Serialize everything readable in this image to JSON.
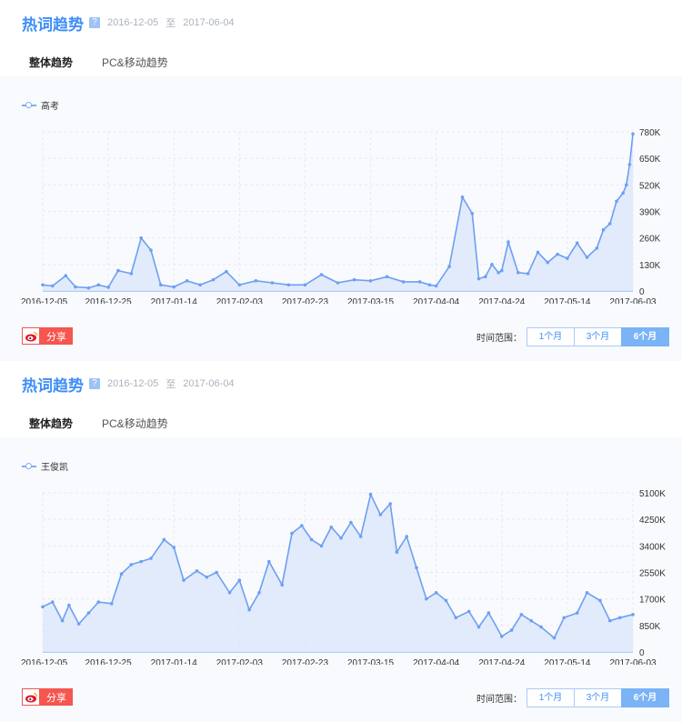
{
  "panels": [
    {
      "title": "热词趋势",
      "help_icon": "?",
      "date_start": "2016-12-05",
      "date_sep": "至",
      "date_end": "2017-06-04",
      "tabs": [
        {
          "label": "整体趋势",
          "active": true
        },
        {
          "label": "PC&移动趋势",
          "active": false
        }
      ],
      "share_label": "分享",
      "range_label": "时间范围：",
      "range_buttons": [
        {
          "label": "1个月",
          "active": false
        },
        {
          "label": "3个月",
          "active": false
        },
        {
          "label": "6个月",
          "active": true
        }
      ]
    },
    {
      "title": "热词趋势",
      "help_icon": "?",
      "date_start": "2016-12-05",
      "date_sep": "至",
      "date_end": "2017-06-04",
      "tabs": [
        {
          "label": "整体趋势",
          "active": true
        },
        {
          "label": "PC&移动趋势",
          "active": false
        }
      ],
      "share_label": "分享",
      "range_label": "时间范围：",
      "range_buttons": [
        {
          "label": "1个月",
          "active": false
        },
        {
          "label": "3个月",
          "active": false
        },
        {
          "label": "6个月",
          "active": true
        }
      ]
    }
  ],
  "chart_data": [
    {
      "type": "area",
      "x_start": "2016-12-05",
      "x_end": "2017-06-03",
      "x_ticks": [
        "2016-12-05",
        "2016-12-25",
        "2017-01-14",
        "2017-02-03",
        "2017-02-23",
        "2017-03-15",
        "2017-04-04",
        "2017-04-24",
        "2017-05-14",
        "2017-06-03"
      ],
      "y_ticks": [
        "0",
        "130K",
        "260K",
        "390K",
        "520K",
        "650K",
        "780K"
      ],
      "ylim": [
        0,
        780000
      ],
      "grid": true,
      "color": "#6e9ff2",
      "series": [
        {
          "name": "高考",
          "x": [
            "2016-12-05",
            "2016-12-08",
            "2016-12-12",
            "2016-12-15",
            "2016-12-19",
            "2016-12-22",
            "2016-12-25",
            "2016-12-28",
            "2017-01-01",
            "2017-01-04",
            "2017-01-07",
            "2017-01-10",
            "2017-01-14",
            "2017-01-18",
            "2017-01-22",
            "2017-01-26",
            "2017-01-30",
            "2017-02-03",
            "2017-02-08",
            "2017-02-13",
            "2017-02-18",
            "2017-02-23",
            "2017-02-28",
            "2017-03-05",
            "2017-03-10",
            "2017-03-15",
            "2017-03-20",
            "2017-03-25",
            "2017-03-30",
            "2017-04-02",
            "2017-04-04",
            "2017-04-08",
            "2017-04-12",
            "2017-04-15",
            "2017-04-17",
            "2017-04-19",
            "2017-04-21",
            "2017-04-23",
            "2017-04-24",
            "2017-04-26",
            "2017-04-29",
            "2017-05-02",
            "2017-05-05",
            "2017-05-08",
            "2017-05-11",
            "2017-05-14",
            "2017-05-17",
            "2017-05-20",
            "2017-05-23",
            "2017-05-25",
            "2017-05-27",
            "2017-05-29",
            "2017-05-31",
            "2017-06-01",
            "2017-06-02",
            "2017-06-03"
          ],
          "values": [
            30000,
            25000,
            75000,
            20000,
            15000,
            30000,
            18000,
            100000,
            85000,
            260000,
            200000,
            30000,
            20000,
            50000,
            30000,
            55000,
            95000,
            30000,
            50000,
            40000,
            30000,
            30000,
            80000,
            40000,
            55000,
            50000,
            70000,
            45000,
            45000,
            30000,
            25000,
            120000,
            460000,
            380000,
            60000,
            70000,
            130000,
            90000,
            100000,
            240000,
            90000,
            85000,
            190000,
            140000,
            180000,
            160000,
            235000,
            165000,
            210000,
            300000,
            330000,
            440000,
            480000,
            520000,
            620000,
            770000
          ]
        }
      ]
    },
    {
      "type": "area",
      "x_start": "2016-12-05",
      "x_end": "2017-06-03",
      "x_ticks": [
        "2016-12-05",
        "2016-12-25",
        "2017-01-14",
        "2017-02-03",
        "2017-02-23",
        "2017-03-15",
        "2017-04-04",
        "2017-04-24",
        "2017-05-14",
        "2017-06-03"
      ],
      "y_ticks": [
        "0",
        "850K",
        "1700K",
        "2550K",
        "3400K",
        "4250K",
        "5100K"
      ],
      "ylim": [
        0,
        5100000
      ],
      "grid": true,
      "color": "#6e9ff2",
      "series": [
        {
          "name": "王俊凯",
          "x": [
            "2016-12-05",
            "2016-12-08",
            "2016-12-11",
            "2016-12-13",
            "2016-12-16",
            "2016-12-19",
            "2016-12-22",
            "2016-12-26",
            "2016-12-29",
            "2017-01-01",
            "2017-01-04",
            "2017-01-07",
            "2017-01-11",
            "2017-01-14",
            "2017-01-17",
            "2017-01-21",
            "2017-01-24",
            "2017-01-27",
            "2017-01-31",
            "2017-02-03",
            "2017-02-06",
            "2017-02-09",
            "2017-02-12",
            "2017-02-16",
            "2017-02-19",
            "2017-02-22",
            "2017-02-25",
            "2017-02-28",
            "2017-03-03",
            "2017-03-06",
            "2017-03-09",
            "2017-03-12",
            "2017-03-15",
            "2017-03-18",
            "2017-03-21",
            "2017-03-23",
            "2017-03-26",
            "2017-03-29",
            "2017-04-01",
            "2017-04-04",
            "2017-04-07",
            "2017-04-10",
            "2017-04-14",
            "2017-04-17",
            "2017-04-20",
            "2017-04-24",
            "2017-04-27",
            "2017-04-30",
            "2017-05-03",
            "2017-05-06",
            "2017-05-10",
            "2017-05-13",
            "2017-05-17",
            "2017-05-20",
            "2017-05-24",
            "2017-05-27",
            "2017-05-30",
            "2017-06-03"
          ],
          "values": [
            1450000,
            1600000,
            1000000,
            1500000,
            900000,
            1250000,
            1600000,
            1550000,
            2500000,
            2800000,
            2900000,
            3000000,
            3600000,
            3350000,
            2300000,
            2600000,
            2400000,
            2550000,
            1900000,
            2300000,
            1350000,
            1900000,
            2900000,
            2150000,
            3800000,
            4050000,
            3600000,
            3400000,
            4000000,
            3650000,
            4150000,
            3700000,
            5050000,
            4400000,
            4750000,
            3200000,
            3700000,
            2700000,
            1700000,
            1900000,
            1650000,
            1100000,
            1300000,
            800000,
            1250000,
            500000,
            700000,
            1200000,
            1000000,
            800000,
            450000,
            1100000,
            1250000,
            1900000,
            1650000,
            1000000,
            1100000,
            1200000
          ]
        }
      ]
    }
  ]
}
